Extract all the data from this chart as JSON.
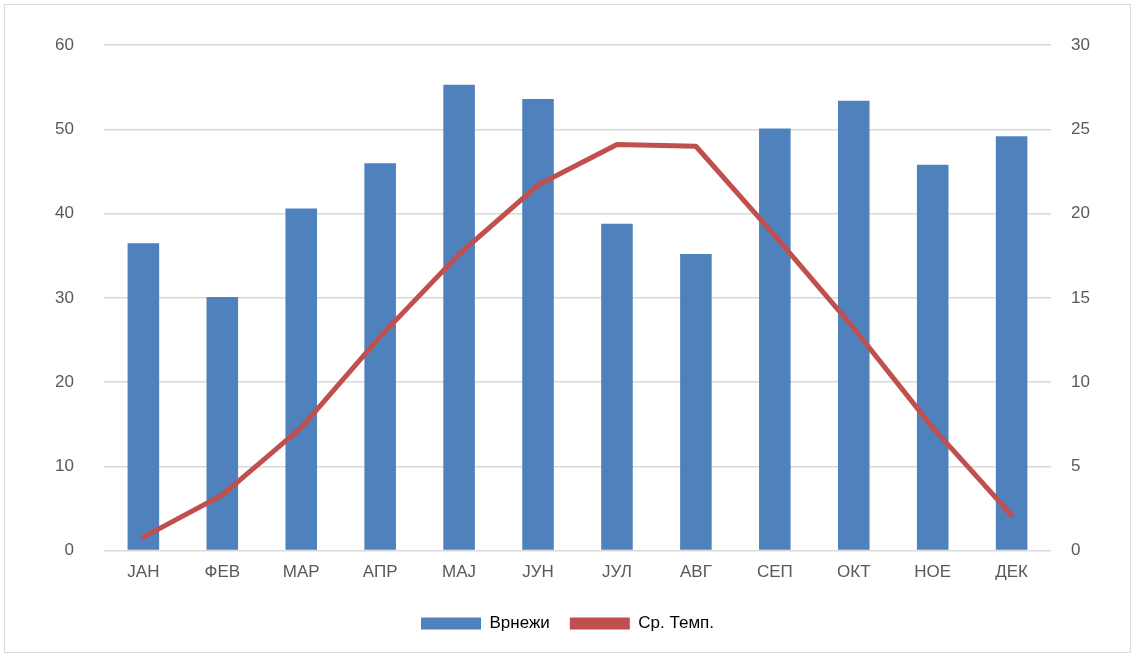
{
  "chart_data": {
    "type": "bar",
    "categories": [
      "ЈАН",
      "ФЕВ",
      "МАР",
      "АПР",
      "МАЈ",
      "ЈУН",
      "ЈУЛ",
      "АВГ",
      "СЕП",
      "ОКТ",
      "НОЕ",
      "ДЕК"
    ],
    "series": [
      {
        "name": "Врнежи",
        "color": "#4f81bd",
        "values": [
          36.5,
          30.1,
          40.6,
          46.0,
          55.3,
          53.6,
          38.8,
          35.2,
          50.1,
          53.4,
          45.8,
          49.2
        ]
      },
      {
        "name": "Ср. Темп.",
        "type": "line",
        "axis": "y2",
        "color": "#c0504d",
        "values": [
          0.8,
          3.3,
          7.3,
          12.7,
          17.6,
          21.7,
          24.1,
          24.0,
          18.7,
          13.2,
          7.3,
          2.1
        ]
      }
    ],
    "ylim": [
      0,
      60
    ],
    "yticks": [
      0,
      10,
      20,
      30,
      40,
      50,
      60
    ],
    "y2lim": [
      0,
      30
    ],
    "y2ticks": [
      0,
      5,
      10,
      15,
      20,
      25,
      30
    ],
    "grid": "y",
    "legend": "bottom",
    "marker": "none"
  }
}
